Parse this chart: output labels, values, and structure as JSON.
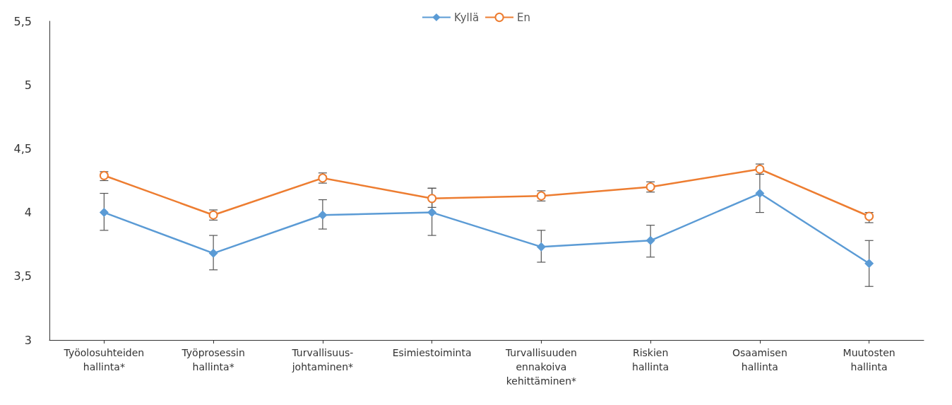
{
  "chart_data": {
    "type": "line",
    "categories": [
      "Työolosuhteiden\nhallinta*",
      "Työprosessin\nhallinta*",
      "Turvallisuus-\njohtaminen*",
      "Esimiestoiminta",
      "Turvallisuuden\nennakoiva\nkehittäminen*",
      "Riskien\nhallinta",
      "Osaamisen\nhallinta",
      "Muutosten\nhallinta"
    ],
    "series": [
      {
        "name": "Kyllä",
        "color": "#5b9bd5",
        "marker": "diamond",
        "values": [
          4.0,
          3.68,
          3.98,
          4.0,
          3.73,
          3.78,
          4.15,
          3.6
        ],
        "errors": [
          [
            3.86,
            4.15
          ],
          [
            3.55,
            3.82
          ],
          [
            3.87,
            4.1
          ],
          [
            3.82,
            4.19
          ],
          [
            3.61,
            3.86
          ],
          [
            3.65,
            3.9
          ],
          [
            4.0,
            4.3
          ],
          [
            3.42,
            3.78
          ]
        ]
      },
      {
        "name": "En",
        "color": "#ed7d31",
        "marker": "circle",
        "values": [
          4.29,
          3.98,
          4.27,
          4.11,
          4.13,
          4.2,
          4.34,
          3.97
        ],
        "errors": [
          [
            4.25,
            4.32
          ],
          [
            3.94,
            4.02
          ],
          [
            4.23,
            4.31
          ],
          [
            4.04,
            4.19
          ],
          [
            4.09,
            4.17
          ],
          [
            4.16,
            4.24
          ],
          [
            4.3,
            4.38
          ],
          [
            3.92,
            4.0
          ]
        ]
      }
    ],
    "ylim": [
      3,
      5.5
    ],
    "yticks": [
      {
        "value": 3,
        "label": "3"
      },
      {
        "value": 3.5,
        "label": "3,5"
      },
      {
        "value": 4,
        "label": "4"
      },
      {
        "value": 4.5,
        "label": "4,5"
      },
      {
        "value": 5,
        "label": "5"
      },
      {
        "value": 5.5,
        "label": "5,5"
      }
    ],
    "grid": false,
    "legend": "top",
    "line_style": "solid"
  }
}
